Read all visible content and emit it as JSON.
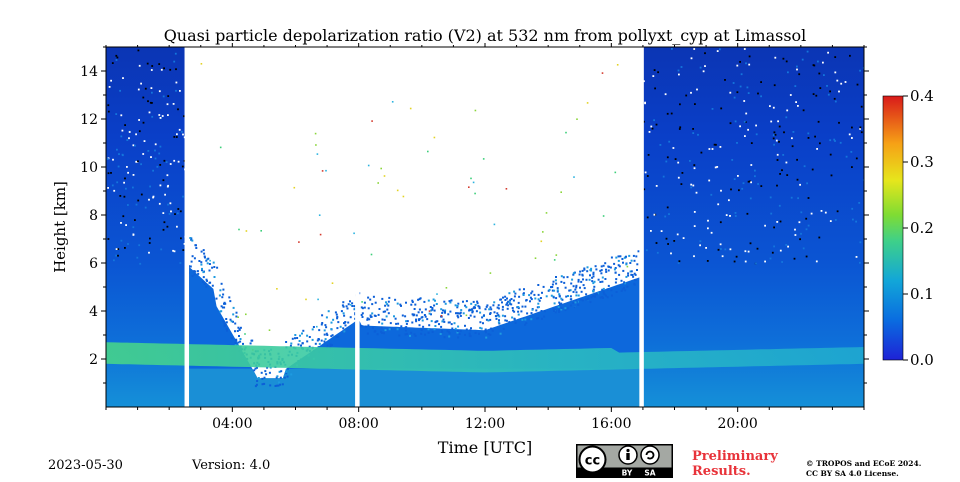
{
  "chart_data": {
    "type": "heatmap",
    "title": "Quasi particle depolarization ratio (V2) at 532 nm from pollyxt_cyp at Limassol",
    "xlabel": "Time [UTC]",
    "ylabel": "Height [km]",
    "x_ticks": [
      "04:00",
      "08:00",
      "12:00",
      "16:00",
      "20:00"
    ],
    "y_ticks": [
      "2",
      "4",
      "6",
      "8",
      "10",
      "12",
      "14"
    ],
    "x_range_hours": [
      0,
      24
    ],
    "y_range_km": [
      0,
      15
    ],
    "colorbar": {
      "range": [
        0.0,
        0.4
      ],
      "ticks": [
        "0.0",
        "0.1",
        "0.2",
        "0.3",
        "0.4"
      ],
      "colormap": "jet"
    },
    "notes": {
      "aerosol_layer_km": [
        1.8,
        2.7
      ],
      "daytime_gap_hours": [
        2.5,
        17.0
      ],
      "gaps_hours": [
        2.55,
        7.95,
        16.95
      ]
    }
  },
  "footer": {
    "date": "2023-05-30",
    "version": "Version: 4.0",
    "preliminary_line1": "Preliminary",
    "preliminary_line2": "Results.",
    "copyright_line1": "© TROPOS and ECoE 2024.",
    "copyright_line2": "CC BY SA 4.0 License."
  },
  "license_badge": {
    "icon": "cc-by-sa-icon",
    "cc": "cc",
    "by": "BY",
    "sa": "SA"
  }
}
